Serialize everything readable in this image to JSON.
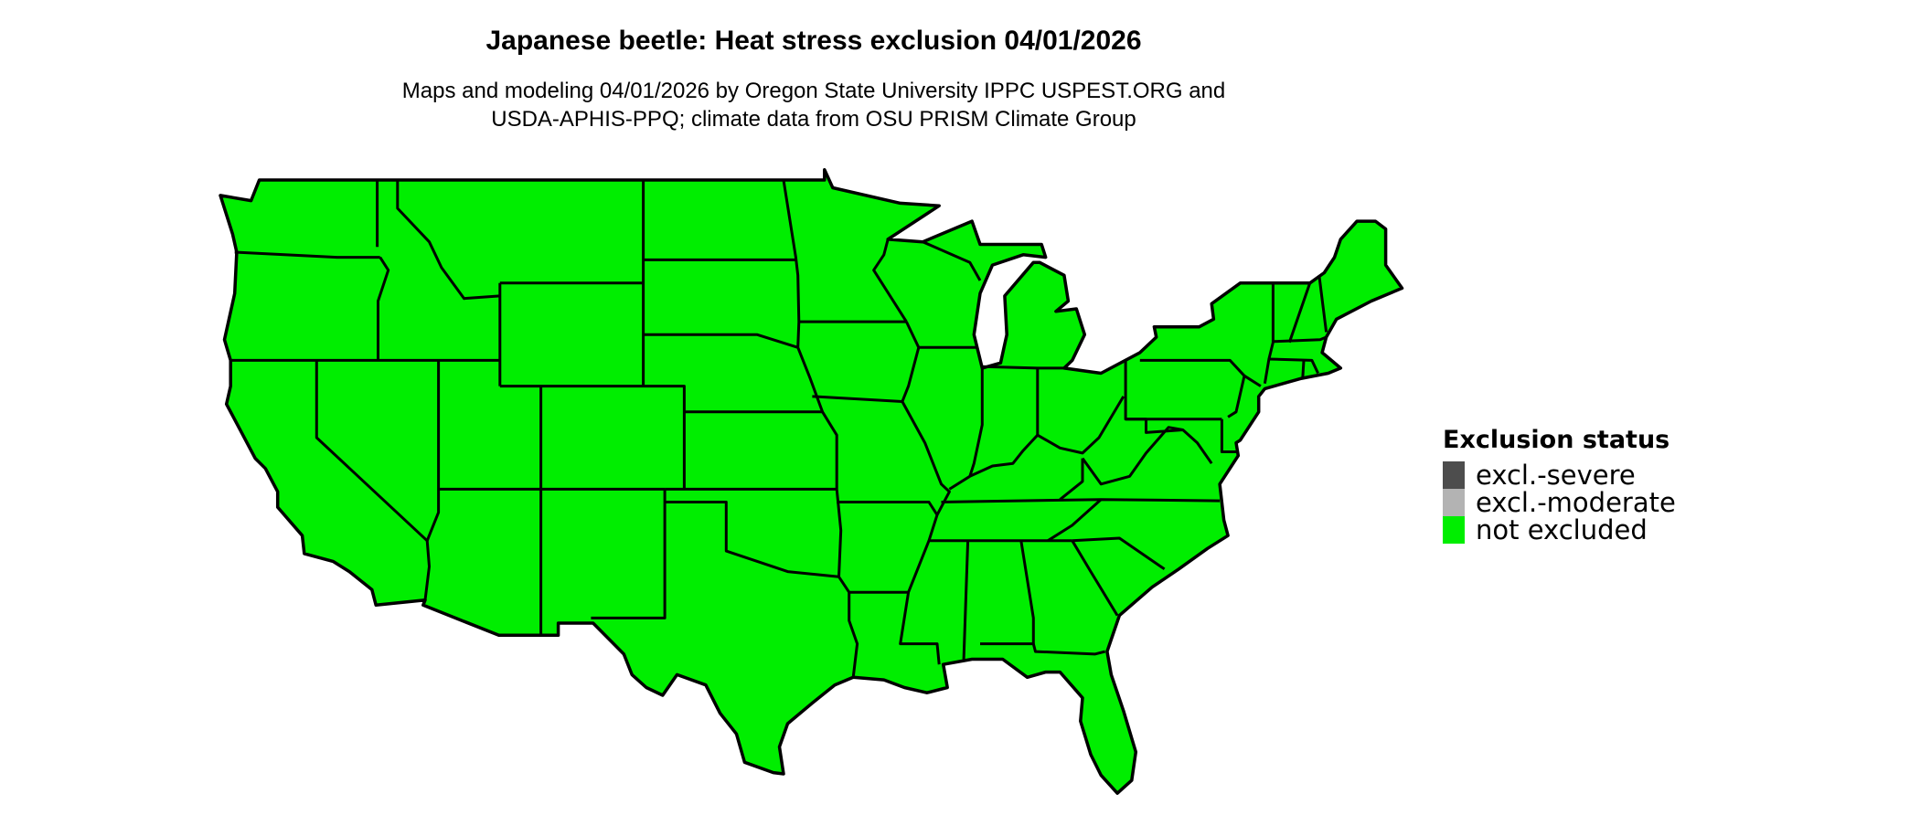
{
  "title": "Japanese beetle: Heat stress exclusion 04/01/2026",
  "subtitle_line1": "Maps and modeling 04/01/2026 by Oregon State University IPPC USPEST.ORG and",
  "subtitle_line2": "USDA-APHIS-PPQ; climate data from OSU PRISM Climate Group",
  "map": {
    "region": "contiguous United States",
    "fill_status": "not excluded",
    "fill_color": "#00ee00",
    "border_color": "#000000"
  },
  "legend": {
    "title": "Exclusion status",
    "items": [
      {
        "label": "excl.-severe",
        "color": "#4d4d4d"
      },
      {
        "label": "excl.-moderate",
        "color": "#b3b3b3"
      },
      {
        "label": "not excluded",
        "color": "#00ee00"
      }
    ]
  }
}
